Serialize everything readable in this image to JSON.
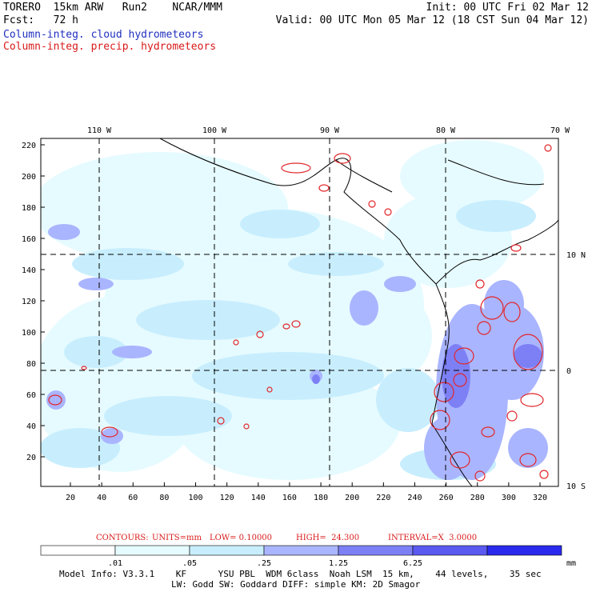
{
  "header": {
    "model_line": "TORERO  15km ARW   Run2    NCAR/MMM",
    "fcst_line": "Fcst:   72 h",
    "init_line": "Init: 00 UTC Fri 02 Mar 12",
    "valid_line": "Valid: 00 UTC Mon 05 Mar 12 (18 CST Sun 04 Mar 12)",
    "field1": "Column-integ. cloud hydrometeors",
    "field2": "Column-integ. precip. hydrometeors",
    "field1_color": "#1f2fbf",
    "field2_color": "#d91a1a"
  },
  "map": {
    "top_lon_labels": [
      "110 W",
      "100 W",
      "90 W",
      "80 W",
      "70 W"
    ],
    "right_lat_labels": [
      "10 N",
      "0",
      "10 S"
    ],
    "left_grid_labels": [
      "220",
      "200",
      "180",
      "160",
      "140",
      "120",
      "100",
      "80",
      "60",
      "40",
      "20"
    ],
    "bottom_grid_labels": [
      "20",
      "40",
      "60",
      "80",
      "100",
      "120",
      "140",
      "160",
      "180",
      "200",
      "220",
      "240",
      "260",
      "280",
      "300",
      "320"
    ]
  },
  "contours_info": {
    "label": "CONTOURS:",
    "units": "UNITS=mm",
    "low": "LOW= 0.10000",
    "high": "HIGH=  24.300",
    "interval": "INTERVAL=X  3.0000"
  },
  "colorbar": {
    "labels": [
      ".01",
      ".05",
      ".25",
      "1.25",
      "6.25"
    ],
    "unit": "mm",
    "colors": [
      "#ffffff",
      "#e6fbff",
      "#c8eefe",
      "#aab5ff",
      "#7d80f5",
      "#5a5af0",
      "#2a2aee"
    ]
  },
  "footer": {
    "line1": "Model Info: V3.3.1    KF      YSU PBL  WDM 6class  Noah LSM  15 km,    44 levels,    35 sec",
    "line2": "LW: Godd SW: Goddard DIFF: simple KM: 2D Smagor"
  }
}
